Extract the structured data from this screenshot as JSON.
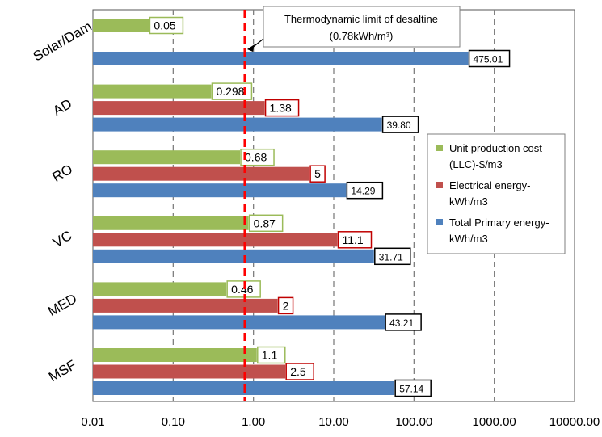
{
  "chart_data": {
    "type": "bar",
    "orientation": "horizontal",
    "x_scale": "log",
    "xlim": [
      0.01,
      10000
    ],
    "x_tick_labels": [
      "0.01",
      "0.10",
      "1.00",
      "10.00",
      "100.00",
      "1000.00",
      "10000.00"
    ],
    "grid": "vertical dashed",
    "categories": [
      "Solar/Dam",
      "AD",
      "RO",
      "VC",
      "MED",
      "MSF"
    ],
    "series": [
      {
        "name": "Unit production cost (LLC)-$/m3",
        "color": "#9BBB59",
        "label_border_color": "#9BBB59",
        "values": [
          0.05,
          0.298,
          0.68,
          0.87,
          0.46,
          1.1
        ],
        "labels": [
          "0.05",
          "0.298",
          "0.68",
          "0.87",
          "0.46",
          "1.1"
        ]
      },
      {
        "name": "Electrical energy-kWh/m3",
        "color": "#C0504D",
        "label_border_color": "#C00000",
        "values": [
          null,
          1.38,
          5,
          11.1,
          2,
          2.5
        ],
        "labels": [
          "",
          "1.38",
          "5",
          "11.1",
          "2",
          "2.5"
        ]
      },
      {
        "name": "Total Primary energy-kWh/m3",
        "color": "#4F81BD",
        "label_border_color": "#000000",
        "values": [
          475.01,
          39.8,
          14.29,
          31.71,
          43.21,
          57.14
        ],
        "labels": [
          "475.01",
          "39.80",
          "14.29",
          "31.71",
          "43.21",
          "57.14"
        ]
      }
    ],
    "legend": {
      "position": "right",
      "entries": [
        [
          "Unit production cost",
          "(LLC)-$/m3"
        ],
        [
          "Electrical energy-",
          "kWh/m3"
        ],
        [
          "Total Primary energy-",
          "kWh/m3"
        ]
      ]
    },
    "reference_line": {
      "value": 0.78,
      "color": "#FF0000",
      "style": "dashed",
      "annotation_line1": "Thermodynamic limit of desaltine",
      "annotation_line2": "(0.78kWh/m³)"
    }
  }
}
